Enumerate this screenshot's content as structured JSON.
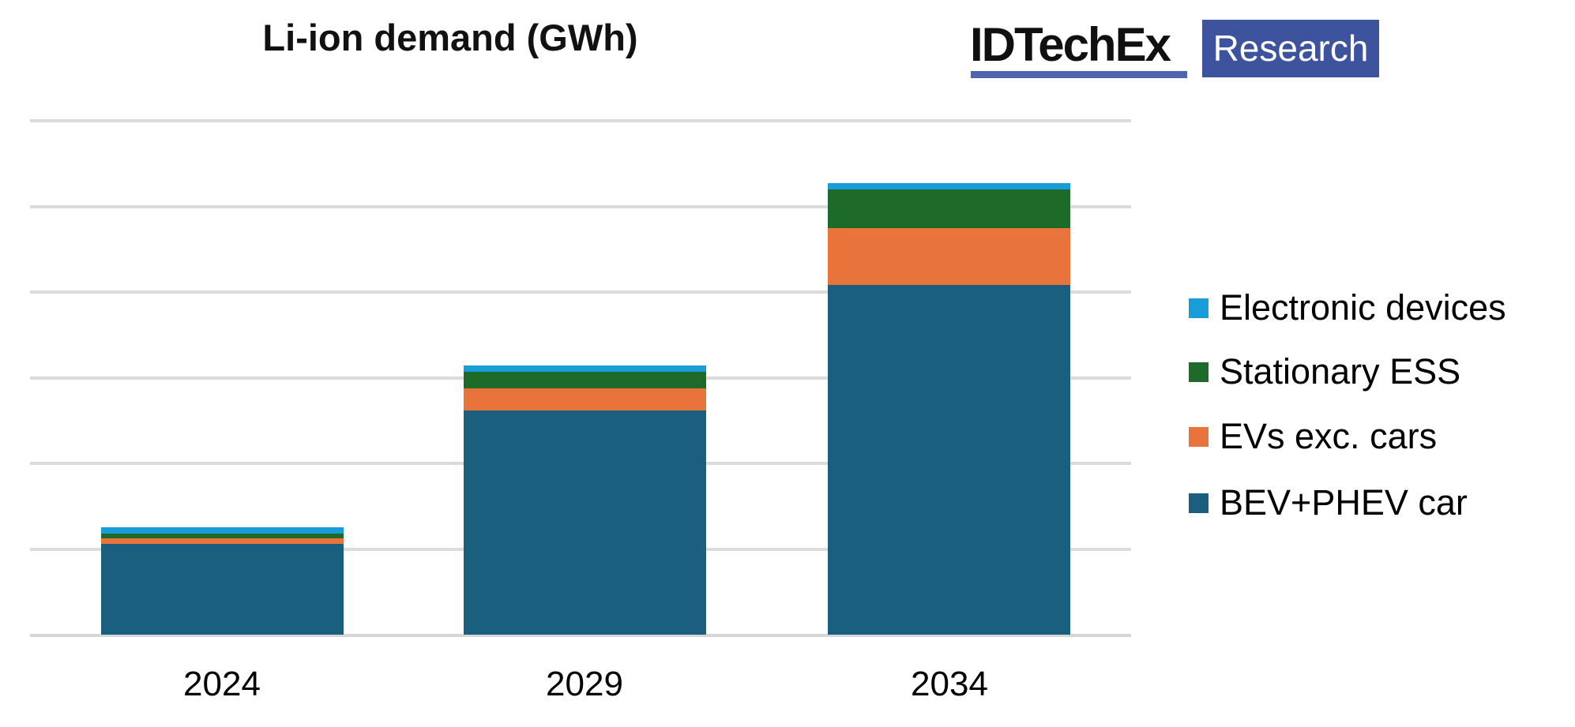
{
  "title_area": {
    "title": "Li-ion demand (GWh)"
  },
  "logo": {
    "brand": "IDTechEx",
    "sub": "Research",
    "box_color": "#3E539E",
    "underline_color": "#5064AE"
  },
  "chart_data": {
    "type": "bar",
    "stacked": true,
    "title": "Li-ion demand (GWh)",
    "categories": [
      "2024",
      "2029",
      "2034"
    ],
    "series": [
      {
        "name": "Electronic devices",
        "color": "#189DD9",
        "values": [
          0.07,
          0.07,
          0.07
        ]
      },
      {
        "name": "Stationary ESS",
        "color": "#1E6B29",
        "values": [
          0.06,
          0.19,
          0.45
        ]
      },
      {
        "name": "EVs exc. cars",
        "color": "#E8743B",
        "values": [
          0.06,
          0.26,
          0.67
        ]
      },
      {
        "name": "BEV+PHEV car",
        "color": "#1A5F7E",
        "values": [
          1.06,
          2.62,
          4.08
        ]
      }
    ],
    "stack_order_bottom_to_top": [
      "BEV+PHEV car",
      "EVs exc. cars",
      "Stationary ESS",
      "Electronic devices"
    ],
    "approx_totals": [
      1.25,
      3.14,
      5.27
    ],
    "value_unit": "y-axis gridline intervals (no y tick labels shown on chart)",
    "xlabel": "",
    "ylabel": "",
    "y_axis": {
      "ylim": [
        0,
        6
      ],
      "tick_labels_visible": false,
      "gridlines": true
    },
    "legend_position": "right",
    "gridline_color": "#DBDBDB",
    "baseline_color": "#D6D6D6"
  }
}
